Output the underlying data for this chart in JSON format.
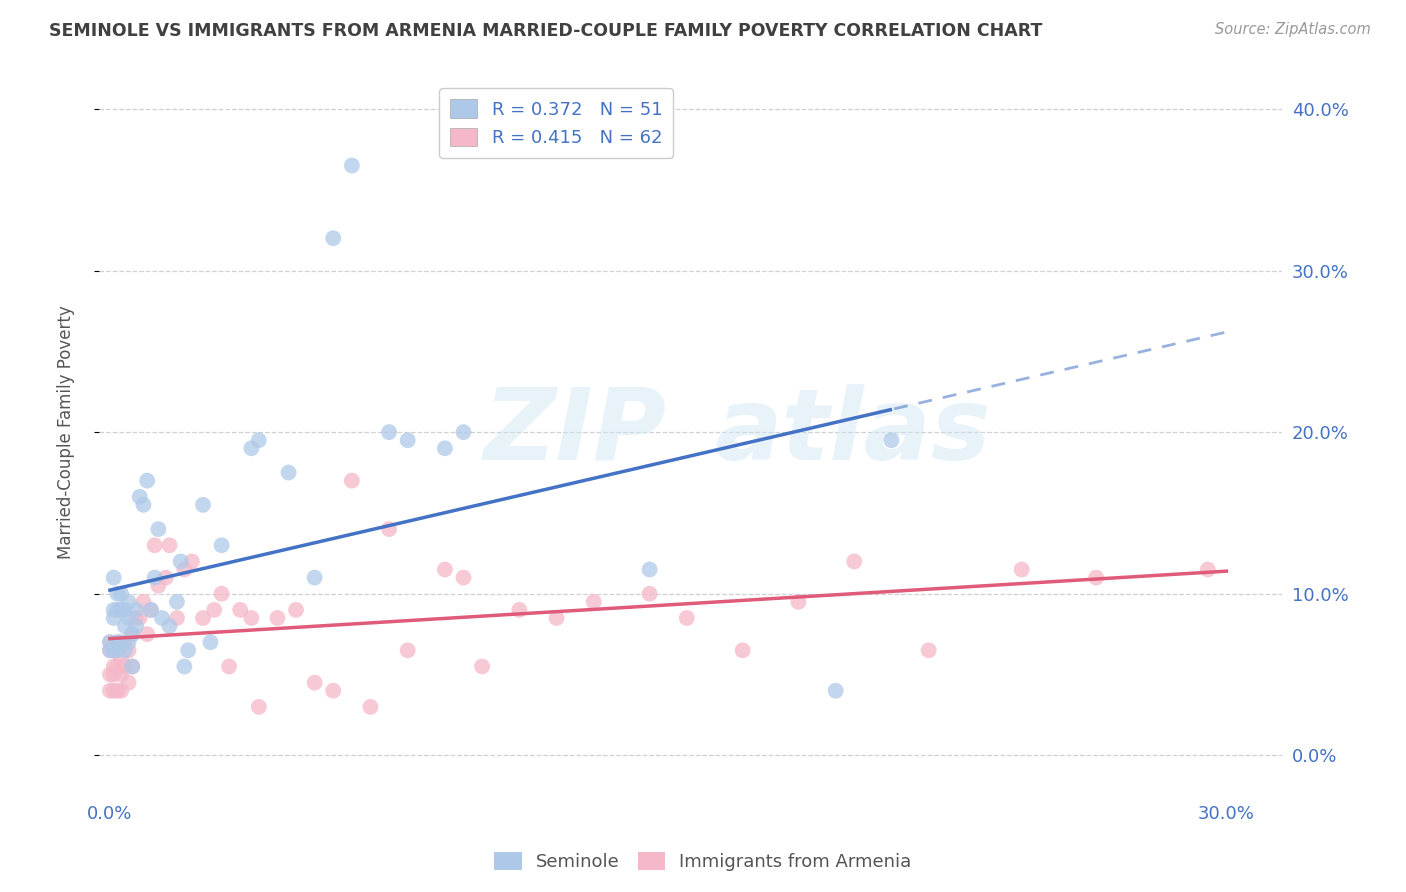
{
  "title": "SEMINOLE VS IMMIGRANTS FROM ARMENIA MARRIED-COUPLE FAMILY POVERTY CORRELATION CHART",
  "source": "Source: ZipAtlas.com",
  "xlim": [
    -0.003,
    0.315
  ],
  "ylim": [
    -0.025,
    0.425
  ],
  "ylabel": "Married-Couple Family Poverty",
  "legend_label1": "Seminole",
  "legend_label2": "Immigrants from Armenia",
  "R1": 0.372,
  "N1": 51,
  "R2": 0.415,
  "N2": 62,
  "color_blue": "#aec9e8",
  "color_pink": "#f4b8c8",
  "line_blue": "#4472c4",
  "line_pink": "#e05a7a",
  "watermark_zip": "ZIP",
  "watermark_atlas": "atlas",
  "title_color": "#404040",
  "axis_color": "#4472c4",
  "grid_color": "#d0d0d0",
  "yticks": [
    0.0,
    0.1,
    0.2,
    0.3,
    0.4
  ],
  "xtick_left": 0.0,
  "xtick_right": 0.3,
  "seminole_x": [
    0.0,
    0.0,
    0.001,
    0.001,
    0.001,
    0.001,
    0.002,
    0.002,
    0.002,
    0.002,
    0.003,
    0.003,
    0.003,
    0.004,
    0.004,
    0.004,
    0.005,
    0.005,
    0.005,
    0.006,
    0.006,
    0.007,
    0.007,
    0.008,
    0.009,
    0.01,
    0.011,
    0.012,
    0.013,
    0.014,
    0.016,
    0.018,
    0.019,
    0.02,
    0.021,
    0.025,
    0.027,
    0.03,
    0.038,
    0.04,
    0.048,
    0.055,
    0.06,
    0.065,
    0.075,
    0.08,
    0.09,
    0.095,
    0.145,
    0.195,
    0.21
  ],
  "seminole_y": [
    0.065,
    0.07,
    0.065,
    0.085,
    0.09,
    0.11,
    0.065,
    0.07,
    0.09,
    0.1,
    0.07,
    0.09,
    0.1,
    0.065,
    0.08,
    0.09,
    0.07,
    0.085,
    0.095,
    0.055,
    0.075,
    0.08,
    0.09,
    0.16,
    0.155,
    0.17,
    0.09,
    0.11,
    0.14,
    0.085,
    0.08,
    0.095,
    0.12,
    0.055,
    0.065,
    0.155,
    0.07,
    0.13,
    0.19,
    0.195,
    0.175,
    0.11,
    0.32,
    0.365,
    0.2,
    0.195,
    0.19,
    0.2,
    0.115,
    0.04,
    0.195
  ],
  "armenia_x": [
    0.0,
    0.0,
    0.0,
    0.0,
    0.001,
    0.001,
    0.001,
    0.001,
    0.002,
    0.002,
    0.002,
    0.003,
    0.003,
    0.003,
    0.004,
    0.004,
    0.005,
    0.005,
    0.006,
    0.006,
    0.007,
    0.008,
    0.009,
    0.01,
    0.011,
    0.012,
    0.013,
    0.015,
    0.016,
    0.018,
    0.02,
    0.022,
    0.025,
    0.028,
    0.03,
    0.032,
    0.035,
    0.038,
    0.04,
    0.045,
    0.05,
    0.055,
    0.06,
    0.065,
    0.07,
    0.075,
    0.08,
    0.09,
    0.095,
    0.1,
    0.11,
    0.12,
    0.13,
    0.145,
    0.155,
    0.17,
    0.185,
    0.2,
    0.22,
    0.245,
    0.265,
    0.295
  ],
  "armenia_y": [
    0.04,
    0.05,
    0.065,
    0.07,
    0.04,
    0.05,
    0.055,
    0.065,
    0.04,
    0.055,
    0.07,
    0.04,
    0.05,
    0.06,
    0.055,
    0.07,
    0.045,
    0.065,
    0.055,
    0.075,
    0.085,
    0.085,
    0.095,
    0.075,
    0.09,
    0.13,
    0.105,
    0.11,
    0.13,
    0.085,
    0.115,
    0.12,
    0.085,
    0.09,
    0.1,
    0.055,
    0.09,
    0.085,
    0.03,
    0.085,
    0.09,
    0.045,
    0.04,
    0.17,
    0.03,
    0.14,
    0.065,
    0.115,
    0.11,
    0.055,
    0.09,
    0.085,
    0.095,
    0.1,
    0.085,
    0.065,
    0.095,
    0.12,
    0.065,
    0.115,
    0.11,
    0.115
  ]
}
